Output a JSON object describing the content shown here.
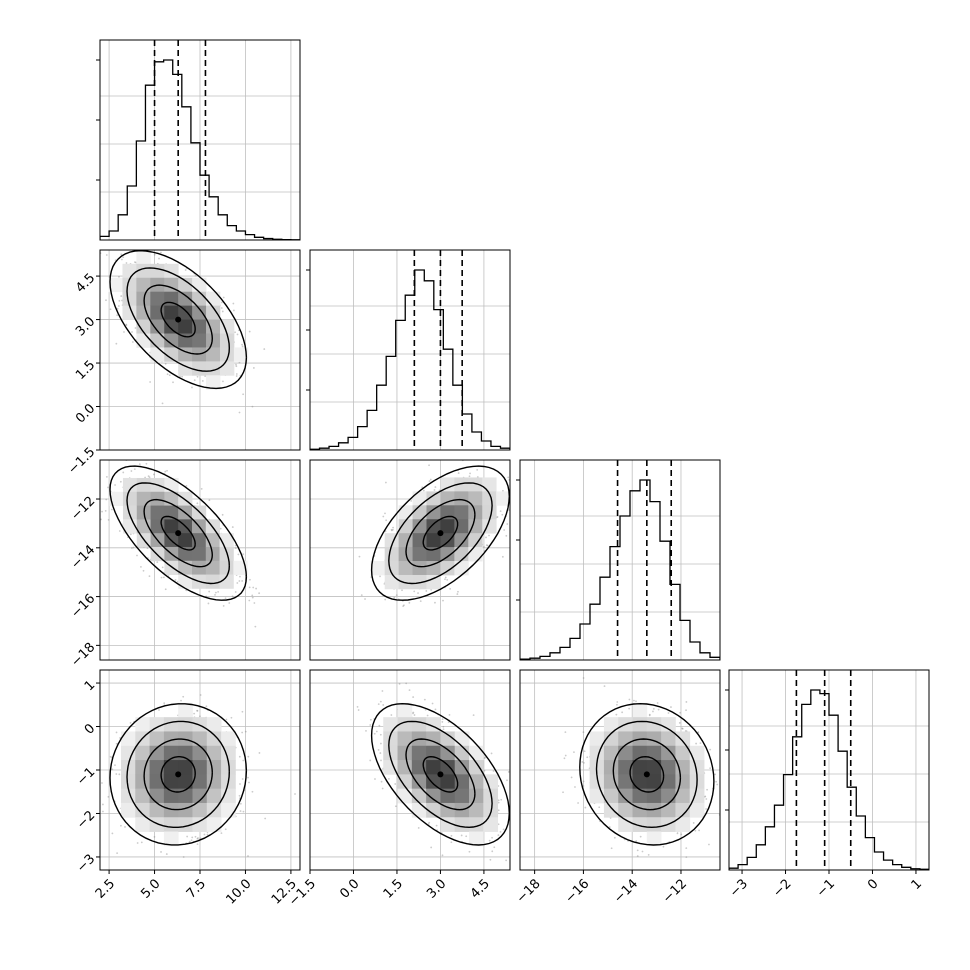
{
  "chart_data": {
    "type": "corner",
    "params": [
      {
        "ticks": [
          "2.5",
          "5.0",
          "7.5",
          "10.0",
          "12.5"
        ],
        "tick_values": [
          2.5,
          5.0,
          7.5,
          10.0,
          12.5
        ],
        "range": [
          2.0,
          13.0
        ],
        "quantiles": [
          5.0,
          6.3,
          7.8
        ],
        "mean": 6.3,
        "sd": 1.5
      },
      {
        "ticks": [
          "−1.5",
          "0.0",
          "1.5",
          "3.0",
          "4.5"
        ],
        "tick_values": [
          -1.5,
          0.0,
          1.5,
          3.0,
          4.5
        ],
        "range": [
          -1.5,
          5.4
        ],
        "quantiles": [
          2.1,
          3.0,
          3.75
        ],
        "mean": 3.0,
        "sd": 0.95
      },
      {
        "ticks": [
          "−18",
          "−16",
          "−14",
          "−12"
        ],
        "tick_values": [
          -18,
          -16,
          -14,
          -12
        ],
        "range": [
          -18.6,
          -10.4
        ],
        "quantiles": [
          -14.6,
          -13.4,
          -12.4
        ],
        "mean": -13.4,
        "sd": 1.1
      },
      {
        "ticks": [
          "−3",
          "−2",
          "−1",
          "0",
          "1"
        ],
        "tick_values": [
          -3,
          -2,
          -1,
          0,
          1
        ],
        "range": [
          -3.3,
          1.3
        ],
        "quantiles": [
          -1.75,
          -1.1,
          -0.5
        ],
        "mean": -1.1,
        "sd": 0.65
      }
    ],
    "histograms": [
      {
        "param": 0,
        "counts": [
          0.02,
          0.05,
          0.14,
          0.3,
          0.55,
          0.86,
          0.99,
          1.0,
          0.92,
          0.74,
          0.54,
          0.36,
          0.24,
          0.14,
          0.08,
          0.05,
          0.03,
          0.015,
          0.008,
          0.004,
          0.002,
          0.001
        ]
      },
      {
        "param": 1,
        "counts": [
          0.004,
          0.01,
          0.02,
          0.04,
          0.07,
          0.13,
          0.22,
          0.36,
          0.52,
          0.72,
          0.86,
          1.0,
          0.94,
          0.78,
          0.56,
          0.36,
          0.2,
          0.1,
          0.05,
          0.02,
          0.01
        ]
      },
      {
        "param": 2,
        "counts": [
          0.005,
          0.01,
          0.02,
          0.04,
          0.07,
          0.12,
          0.2,
          0.31,
          0.46,
          0.63,
          0.8,
          0.94,
          1.0,
          0.88,
          0.66,
          0.42,
          0.22,
          0.1,
          0.04,
          0.015
        ]
      },
      {
        "param": 3,
        "counts": [
          0.01,
          0.03,
          0.07,
          0.14,
          0.24,
          0.36,
          0.53,
          0.74,
          0.92,
          1.0,
          0.98,
          0.86,
          0.66,
          0.46,
          0.3,
          0.18,
          0.1,
          0.055,
          0.03,
          0.015,
          0.007,
          0.004
        ]
      }
    ],
    "correlations": [
      [
        1,
        -0.55,
        -0.65,
        0.05
      ],
      [
        -0.55,
        1,
        0.55,
        -0.55
      ],
      [
        -0.65,
        0.55,
        1,
        -0.1
      ],
      [
        0.05,
        -0.55,
        -0.1,
        1
      ]
    ],
    "contour_levels_sigma": [
      0.5,
      1.0,
      1.5,
      2.0
    ],
    "grid": true,
    "colors": {
      "hist": "#000000",
      "contour": "#000000",
      "scatter": "#8c8c8c",
      "grid": "#bfbfbf"
    }
  }
}
